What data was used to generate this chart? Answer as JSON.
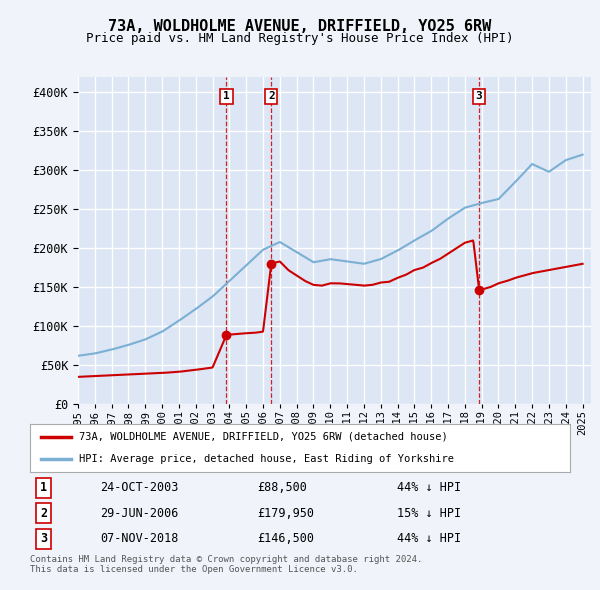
{
  "title": "73A, WOLDHOLME AVENUE, DRIFFIELD, YO25 6RW",
  "subtitle": "Price paid vs. HM Land Registry's House Price Index (HPI)",
  "ylim": [
    0,
    420000
  ],
  "yticks": [
    0,
    50000,
    100000,
    150000,
    200000,
    250000,
    300000,
    350000,
    400000
  ],
  "bg_color": "#f0f4fa",
  "plot_bg": "#dce6f5",
  "grid_color": "#ffffff",
  "red_color": "#cc0000",
  "blue_color": "#7bafd4",
  "vline_color": "#cc0000",
  "sale_dates": [
    2003.82,
    2006.49,
    2018.85
  ],
  "sale_prices": [
    88500,
    179950,
    146500
  ],
  "sale_labels": [
    "1",
    "2",
    "3"
  ],
  "legend_red": "73A, WOLDHOLME AVENUE, DRIFFIELD, YO25 6RW (detached house)",
  "legend_blue": "HPI: Average price, detached house, East Riding of Yorkshire",
  "table": [
    [
      "1",
      "24-OCT-2003",
      "£88,500",
      "44% ↓ HPI"
    ],
    [
      "2",
      "29-JUN-2006",
      "£179,950",
      "15% ↓ HPI"
    ],
    [
      "3",
      "07-NOV-2018",
      "£146,500",
      "44% ↓ HPI"
    ]
  ],
  "footer": "Contains HM Land Registry data © Crown copyright and database right 2024.\nThis data is licensed under the Open Government Licence v3.0.",
  "hpi_years": [
    1995,
    1996,
    1997,
    1998,
    1999,
    2000,
    2001,
    2002,
    2003,
    2004,
    2005,
    2006,
    2007,
    2008,
    2009,
    2010,
    2011,
    2012,
    2013,
    2014,
    2015,
    2016,
    2017,
    2018,
    2019,
    2020,
    2021,
    2022,
    2023,
    2024,
    2025
  ],
  "hpi_values": [
    62000,
    65000,
    70000,
    76000,
    83000,
    93000,
    107000,
    122000,
    138000,
    158000,
    178000,
    198000,
    208000,
    195000,
    182000,
    186000,
    183000,
    180000,
    186000,
    197000,
    210000,
    222000,
    238000,
    252000,
    258000,
    263000,
    285000,
    308000,
    298000,
    313000,
    320000
  ],
  "red_years": [
    1995.0,
    1996.0,
    1997.0,
    1998.0,
    1999.0,
    2000.0,
    2001.0,
    2002.0,
    2003.0,
    2003.82,
    2003.9,
    2004.5,
    2005.0,
    2005.5,
    2006.0,
    2006.49,
    2006.6,
    2007.0,
    2007.5,
    2008.0,
    2008.5,
    2009.0,
    2009.5,
    2010.0,
    2010.5,
    2011.0,
    2011.5,
    2012.0,
    2012.5,
    2013.0,
    2013.5,
    2014.0,
    2014.5,
    2015.0,
    2015.5,
    2016.0,
    2016.5,
    2017.0,
    2017.5,
    2018.0,
    2018.5,
    2018.85,
    2019.0,
    2019.5,
    2020.0,
    2020.5,
    2021.0,
    2021.5,
    2022.0,
    2022.5,
    2023.0,
    2023.5,
    2024.0,
    2024.5,
    2025.0
  ],
  "red_values": [
    35000,
    36000,
    37000,
    38000,
    39000,
    40000,
    41500,
    44000,
    47000,
    88500,
    89000,
    90000,
    91000,
    91500,
    93000,
    179950,
    181000,
    183000,
    172000,
    165000,
    158000,
    153000,
    152000,
    155000,
    155000,
    154000,
    153000,
    152000,
    153000,
    156000,
    157000,
    162000,
    166000,
    172000,
    175000,
    181000,
    186000,
    193000,
    200000,
    207000,
    210000,
    146500,
    147000,
    150000,
    155000,
    158000,
    162000,
    165000,
    168000,
    170000,
    172000,
    174000,
    176000,
    178000,
    180000
  ]
}
